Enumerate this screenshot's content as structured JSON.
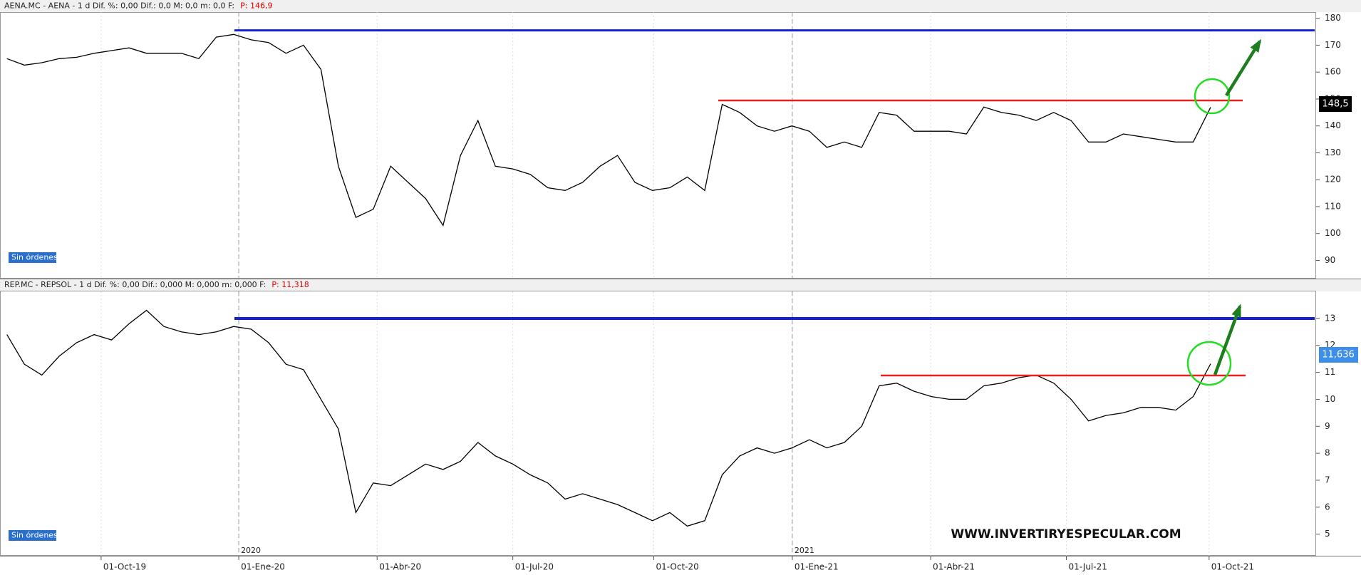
{
  "chart_data": [
    {
      "type": "line",
      "title": "AENA.MC - AENA -  1 d  Dif. %: 0,00  Dif.: 0,0  M: 0,0  m: 0,0  F:",
      "price_text": "P: 146,9",
      "last_label": "148,5",
      "orders": "Sin órdenes",
      "color": "#000000",
      "values": [
        165,
        162.6,
        163.5,
        165,
        165.5,
        167,
        168,
        169,
        167,
        167,
        167,
        165,
        173,
        174,
        172,
        171,
        167,
        170,
        161,
        125,
        106,
        109,
        125,
        119,
        113,
        103,
        129,
        142,
        125,
        124,
        122,
        117,
        116,
        119,
        125,
        129,
        119,
        116,
        117,
        121,
        116,
        148,
        145,
        140,
        138,
        140,
        138,
        132,
        134,
        132,
        145,
        144,
        138,
        138,
        138,
        137,
        147,
        145,
        144,
        142,
        145,
        142,
        134,
        134,
        137,
        136,
        135,
        134,
        134,
        146.9
      ],
      "xlim": [
        0,
        69
      ],
      "ylim": [
        83.5,
        182.3
      ],
      "yticks": [
        90,
        100,
        110,
        120,
        130,
        140,
        150,
        160,
        170,
        180
      ]
    },
    {
      "type": "line",
      "title": "REP.MC - REPSOL -  1 d  Dif. %: 0,00  Dif.: 0,000  M: 0,000  m: 0,000  F:",
      "price_text": "P: 11,318",
      "last_label": "11,636",
      "orders": "Sin órdenes",
      "color": "#000000",
      "values": [
        12.4,
        11.3,
        10.9,
        11.6,
        12.1,
        12.4,
        12.2,
        12.8,
        13.3,
        12.7,
        12.5,
        12.4,
        12.5,
        12.7,
        12.6,
        12.1,
        11.3,
        11.1,
        10.0,
        8.9,
        5.8,
        6.9,
        6.8,
        7.2,
        7.6,
        7.4,
        7.7,
        8.4,
        7.9,
        7.6,
        7.2,
        6.9,
        6.3,
        6.5,
        6.3,
        6.1,
        5.8,
        5.5,
        5.8,
        5.3,
        5.5,
        7.2,
        7.9,
        8.2,
        8.0,
        8.2,
        8.5,
        8.2,
        8.4,
        9.0,
        10.5,
        10.6,
        10.3,
        10.1,
        10.0,
        10.0,
        10.5,
        10.6,
        10.8,
        10.9,
        10.6,
        10.0,
        9.2,
        9.4,
        9.5,
        9.7,
        9.7,
        9.6,
        10.1,
        11.318
      ],
      "xlim": [
        0,
        69
      ],
      "ylim": [
        4.2,
        14
      ],
      "yticks": [
        5,
        6,
        7,
        8,
        9,
        10,
        11,
        12,
        13
      ],
      "xticks": [
        {
          "value": 5.4,
          "label": "01-Oct-19"
        },
        {
          "value": 13.29,
          "label": "01-Ene-20"
        },
        {
          "value": 21.22,
          "label": "01-Abr-20"
        },
        {
          "value": 29.0,
          "label": "01-Jul-20"
        },
        {
          "value": 37.08,
          "label": "01-Oct-20"
        },
        {
          "value": 45.02,
          "label": "01-Ene-21"
        },
        {
          "value": 52.95,
          "label": "01-Abr-21"
        },
        {
          "value": 60.73,
          "label": "01-Jul-21"
        },
        {
          "value": 68.91,
          "label": "01-Oct-21"
        }
      ],
      "year_markers": [
        {
          "value": 13.29,
          "label": "2020"
        },
        {
          "value": 45.02,
          "label": "2021"
        }
      ],
      "watermark": "WWW.INVERTIRYESPECULAR.COM"
    }
  ]
}
